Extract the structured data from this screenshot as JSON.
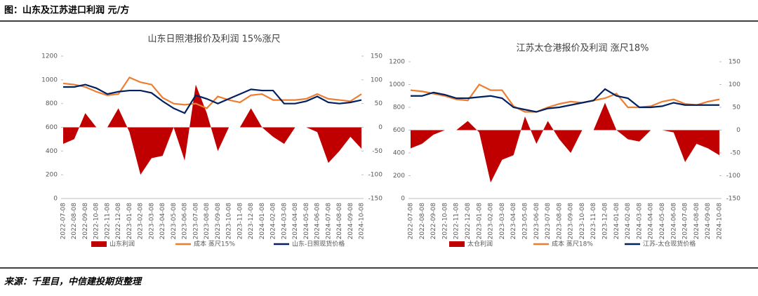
{
  "header": {
    "title": "图：山东及江苏进口利润 元/方"
  },
  "source": "来源：千里目，中信建投期货整理",
  "chart_data": [
    {
      "type": "line",
      "title": "山东日照港报价及利润 15%涨尺",
      "categories": [
        "2022-07-08",
        "2022-08-08",
        "2022-09-08",
        "2022-10-08",
        "2022-11-08",
        "2022-12-08",
        "2023-01-08",
        "2023-02-08",
        "2023-03-08",
        "2023-04-08",
        "2023-05-08",
        "2023-06-08",
        "2023-07-08",
        "2023-08-08",
        "2023-09-08",
        "2023-10-08",
        "2023-11-08",
        "2023-12-08",
        "2024-01-08",
        "2024-02-08",
        "2024-03-08",
        "2024-04-08",
        "2024-05-08",
        "2024-06-08",
        "2024-07-08",
        "2024-08-08",
        "2024-09-08",
        "2024-10-08"
      ],
      "series": [
        {
          "name": "山东利润",
          "type": "area",
          "axis": "y2",
          "color": "#c00000",
          "values": [
            -35,
            -25,
            30,
            0,
            0,
            40,
            -10,
            -100,
            -65,
            -60,
            0,
            -70,
            90,
            30,
            -50,
            0,
            0,
            40,
            0,
            -20,
            -35,
            0,
            0,
            -10,
            -75,
            -50,
            -20,
            -45
          ]
        },
        {
          "name": "成本 蒸尺15%",
          "color": "#ed7d31",
          "values": [
            970,
            960,
            940,
            900,
            870,
            880,
            1020,
            980,
            960,
            850,
            800,
            790,
            800,
            760,
            860,
            830,
            810,
            870,
            880,
            830,
            830,
            830,
            840,
            880,
            840,
            830,
            820,
            880
          ]
        },
        {
          "name": "山东-日照现货价格",
          "color": "#002060",
          "values": [
            940,
            940,
            960,
            930,
            880,
            900,
            910,
            910,
            890,
            820,
            760,
            720,
            870,
            840,
            800,
            840,
            880,
            920,
            910,
            910,
            800,
            800,
            820,
            860,
            810,
            800,
            810,
            830
          ]
        }
      ],
      "ylim": [
        0,
        1200
      ],
      "yticks": [
        0,
        200,
        400,
        600,
        800,
        1000,
        1200
      ],
      "y2lim": [
        -150,
        150
      ],
      "y2ticks": [
        -150,
        -100,
        -50,
        0,
        50,
        100,
        150
      ]
    },
    {
      "type": "line",
      "title": "江苏太仓港报价及利润 涨尺18%",
      "categories": [
        "2022-07-08",
        "2022-08-08",
        "2022-09-08",
        "2022-10-08",
        "2022-11-08",
        "2022-12-08",
        "2023-01-08",
        "2023-02-08",
        "2023-03-08",
        "2023-04-08",
        "2023-05-08",
        "2023-06-08",
        "2023-07-08",
        "2023-08-08",
        "2023-09-08",
        "2023-10-08",
        "2023-11-08",
        "2023-12-08",
        "2024-01-08",
        "2024-02-08",
        "2024-03-08",
        "2024-04-08",
        "2024-05-08",
        "2024-06-08",
        "2024-07-08",
        "2024-08-08",
        "2024-09-08",
        "2024-10-08"
      ],
      "series": [
        {
          "name": "太仓利润",
          "type": "area",
          "axis": "y2",
          "color": "#c00000",
          "values": [
            -40,
            -30,
            -10,
            0,
            0,
            20,
            -5,
            -115,
            -65,
            -55,
            30,
            -30,
            20,
            -20,
            -50,
            0,
            0,
            60,
            0,
            -20,
            -25,
            0,
            0,
            -5,
            -70,
            -30,
            -40,
            -55
          ]
        },
        {
          "name": "成本 蒸尺18%",
          "color": "#ed7d31",
          "values": [
            950,
            940,
            920,
            900,
            870,
            860,
            1000,
            950,
            950,
            810,
            760,
            760,
            800,
            830,
            850,
            840,
            860,
            880,
            920,
            800,
            800,
            810,
            850,
            870,
            830,
            820,
            850,
            870
          ]
        },
        {
          "name": "江苏-太仓现货价格",
          "color": "#002060",
          "values": [
            900,
            900,
            930,
            910,
            880,
            880,
            890,
            900,
            880,
            800,
            780,
            760,
            790,
            800,
            820,
            840,
            860,
            960,
            900,
            880,
            800,
            800,
            810,
            840,
            820,
            820,
            820,
            820
          ]
        }
      ],
      "ylim": [
        0,
        1200
      ],
      "yticks": [
        0,
        200,
        400,
        600,
        800,
        1000,
        1200
      ],
      "y2lim": [
        -150,
        150
      ],
      "y2ticks": [
        -150,
        -100,
        -50,
        0,
        50,
        100,
        150
      ]
    }
  ]
}
